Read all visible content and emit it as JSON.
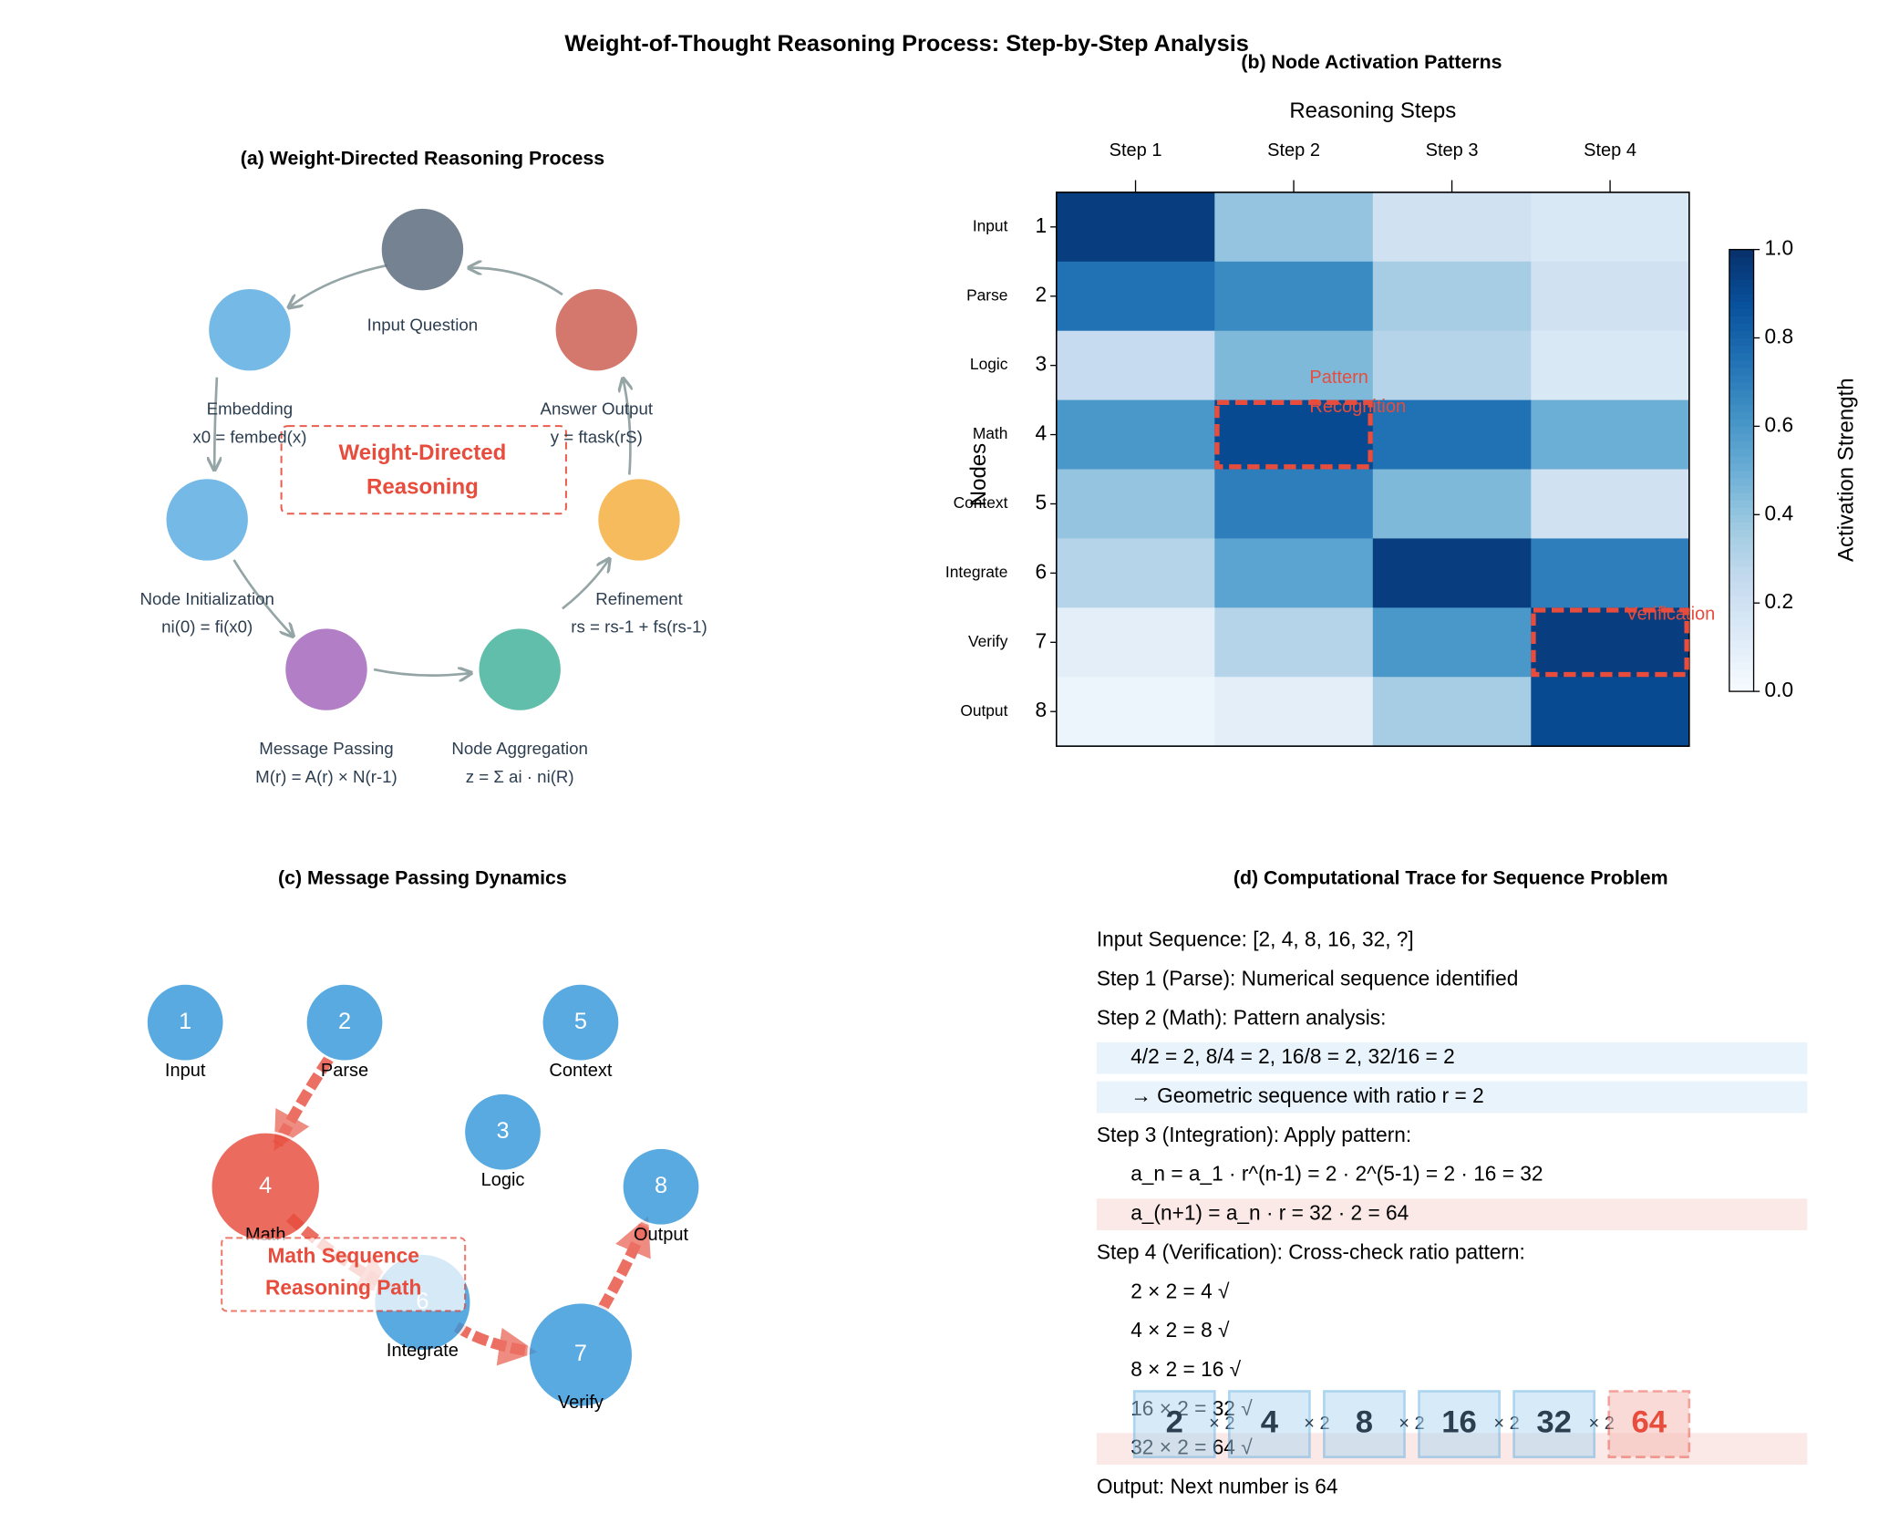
{
  "title": "Weight-of-Thought Reasoning Process: Step-by-Step Analysis",
  "panel_a": {
    "title": "(a) Weight-Directed Reasoning Process",
    "center_label": [
      "Weight-Directed",
      "Reasoning"
    ],
    "nodes": [
      {
        "label": "Input Question",
        "color": "#5d6d7e"
      },
      {
        "label": "Embedding",
        "formula": "x0 = fembed(x)",
        "color": "#5dade2"
      },
      {
        "label": "Node Initialization",
        "formula": "ni(0) = fi(x0)",
        "color": "#5dade2"
      },
      {
        "label": "Message Passing",
        "formula": "M(r) = A(r) × N(r-1)",
        "color": "#a569bd"
      },
      {
        "label": "Node Aggregation",
        "formula": "z = Σ ai · ni(R)",
        "color": "#45b39d"
      },
      {
        "label": "Refinement",
        "formula": "rs = rs-1 + fs(rs-1)",
        "color": "#f5b041"
      },
      {
        "label": "Answer Output",
        "formula": "y = ftask(rS)",
        "color": "#cd6155"
      }
    ]
  },
  "chart_data": {
    "type": "heatmap",
    "title": "(b) Node Activation Patterns",
    "xlabel": "Reasoning Steps",
    "ylabel": "Nodes",
    "columns": [
      "Step 1",
      "Step 2",
      "Step 3",
      "Step 4"
    ],
    "rows": [
      "Input",
      "Parse",
      "Logic",
      "Math",
      "Context",
      "Integrate",
      "Verify",
      "Output"
    ],
    "yticks": [
      1,
      2,
      3,
      4,
      5,
      6,
      7,
      8
    ],
    "values": [
      [
        0.95,
        0.4,
        0.2,
        0.15
      ],
      [
        0.75,
        0.65,
        0.35,
        0.2
      ],
      [
        0.25,
        0.45,
        0.3,
        0.15
      ],
      [
        0.6,
        0.9,
        0.75,
        0.5
      ],
      [
        0.4,
        0.7,
        0.45,
        0.2
      ],
      [
        0.3,
        0.55,
        0.95,
        0.7
      ],
      [
        0.1,
        0.3,
        0.6,
        0.95
      ],
      [
        0.05,
        0.1,
        0.35,
        0.9
      ]
    ],
    "colormap": "Blues",
    "clim": [
      0,
      1
    ],
    "colorbar_label": "Activation Strength",
    "colorbar_ticks": [
      {
        "value": 0,
        "label": "0.0"
      },
      0.2,
      0.4,
      0.6,
      0.8,
      {
        "value": 1,
        "label": "1.0"
      }
    ],
    "highlights": [
      {
        "row": 3,
        "col": 1,
        "text": [
          "Pattern",
          "Recognition"
        ]
      },
      {
        "row": 6,
        "col": 3,
        "text": [
          "Verification"
        ]
      }
    ]
  },
  "panel_c": {
    "title": "(c) Message Passing Dynamics",
    "path_label": [
      "Math Sequence",
      "Reasoning Path"
    ],
    "nodes": [
      {
        "id": "1",
        "label": "Input"
      },
      {
        "id": "2",
        "label": "Parse"
      },
      {
        "id": "3",
        "label": "Logic"
      },
      {
        "id": "4",
        "label": "Math"
      },
      {
        "id": "5",
        "label": "Context"
      },
      {
        "id": "6",
        "label": "Integrate"
      },
      {
        "id": "7",
        "label": "Verify"
      },
      {
        "id": "8",
        "label": "Output"
      }
    ]
  },
  "panel_d": {
    "title": "(d) Computational Trace for Sequence Problem",
    "lines": [
      {
        "text": "Input Sequence: [2, 4, 8, 16, 32, ?]"
      },
      {
        "text": "Step 1 (Parse): Numerical sequence identified"
      },
      {
        "text": "Step 2 (Math): Pattern analysis:"
      },
      {
        "text": "4/2 = 2, 8/4 = 2, 16/8 = 2, 32/16 = 2",
        "indent": true,
        "highlight": "#e8f3fb"
      },
      {
        "text": "→ Geometric sequence with ratio r = 2",
        "indent": true,
        "highlight": "#e8f3fb"
      },
      {
        "text": "Step 3 (Integration): Apply pattern:"
      },
      {
        "text": "a_n = a_1 · r^(n-1) = 2 · 2^(5-1) = 2 · 16 = 32",
        "indent": true
      },
      {
        "text": "a_(n+1) = a_n · r = 32 · 2 = 64",
        "indent": true,
        "highlight": "#fbe9e7"
      },
      {
        "text": "Step 4 (Verification): Cross-check ratio pattern:"
      },
      {
        "text": "2 × 2 = 4 √",
        "indent": true
      },
      {
        "text": "4 × 2 = 8 √",
        "indent": true
      },
      {
        "text": "8 × 2 = 16 √",
        "indent": true
      },
      {
        "text": "16 × 2 = 32 √",
        "indent": true
      },
      {
        "text": "32 × 2 = 64 √",
        "indent": true,
        "highlight": "#fbe9e7"
      },
      {
        "text": "Output: Next number is 64"
      }
    ],
    "sequence": [
      2,
      4,
      8,
      16,
      32,
      64
    ],
    "multiplier": "× 2"
  }
}
